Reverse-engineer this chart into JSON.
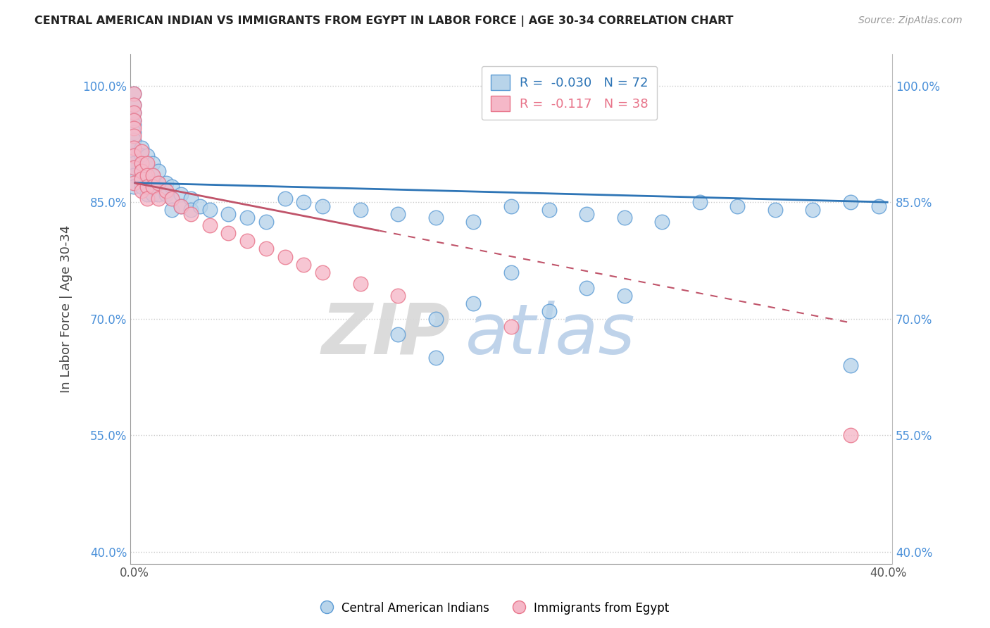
{
  "title": "CENTRAL AMERICAN INDIAN VS IMMIGRANTS FROM EGYPT IN LABOR FORCE | AGE 30-34 CORRELATION CHART",
  "source": "Source: ZipAtlas.com",
  "ylabel": "In Labor Force | Age 30-34",
  "xlabel": "",
  "xlim": [
    -0.002,
    0.402
  ],
  "ylim": [
    0.385,
    1.04
  ],
  "yticks": [
    0.4,
    0.55,
    0.7,
    0.85,
    1.0
  ],
  "ytick_labels": [
    "40.0%",
    "55.0%",
    "70.0%",
    "85.0%",
    "100.0%"
  ],
  "xticks": [
    0.0,
    0.4
  ],
  "xtick_labels": [
    "0.0%",
    "40.0%"
  ],
  "blue_R": -0.03,
  "blue_N": 72,
  "pink_R": -0.117,
  "pink_N": 38,
  "blue_color": "#b8d4ea",
  "pink_color": "#f5b8c8",
  "blue_edge_color": "#5b9bd5",
  "pink_edge_color": "#e8748a",
  "blue_line_color": "#2e75b6",
  "pink_line_color": "#c0546a",
  "legend_label_blue": "Central American Indians",
  "legend_label_pink": "Immigrants from Egypt",
  "blue_scatter_x": [
    0.0,
    0.0,
    0.0,
    0.0,
    0.0,
    0.0,
    0.0,
    0.0,
    0.0,
    0.0,
    0.0,
    0.0,
    0.0,
    0.004,
    0.004,
    0.004,
    0.004,
    0.004,
    0.004,
    0.007,
    0.007,
    0.007,
    0.007,
    0.007,
    0.01,
    0.01,
    0.01,
    0.01,
    0.013,
    0.013,
    0.013,
    0.017,
    0.017,
    0.02,
    0.02,
    0.02,
    0.025,
    0.025,
    0.03,
    0.03,
    0.035,
    0.04,
    0.05,
    0.06,
    0.07,
    0.08,
    0.09,
    0.1,
    0.12,
    0.14,
    0.16,
    0.18,
    0.2,
    0.22,
    0.24,
    0.26,
    0.28,
    0.3,
    0.32,
    0.34,
    0.36,
    0.38,
    0.395,
    0.2,
    0.24,
    0.26,
    0.18,
    0.22,
    0.16,
    0.14,
    0.16,
    0.38
  ],
  "blue_scatter_y": [
    0.99,
    0.975,
    0.965,
    0.955,
    0.95,
    0.94,
    0.93,
    0.92,
    0.91,
    0.9,
    0.895,
    0.885,
    0.87,
    0.92,
    0.91,
    0.9,
    0.89,
    0.88,
    0.87,
    0.91,
    0.895,
    0.88,
    0.87,
    0.86,
    0.9,
    0.885,
    0.875,
    0.86,
    0.89,
    0.875,
    0.86,
    0.875,
    0.86,
    0.87,
    0.855,
    0.84,
    0.86,
    0.845,
    0.855,
    0.84,
    0.845,
    0.84,
    0.835,
    0.83,
    0.825,
    0.855,
    0.85,
    0.845,
    0.84,
    0.835,
    0.83,
    0.825,
    0.845,
    0.84,
    0.835,
    0.83,
    0.825,
    0.85,
    0.845,
    0.84,
    0.84,
    0.85,
    0.845,
    0.76,
    0.74,
    0.73,
    0.72,
    0.71,
    0.7,
    0.68,
    0.65,
    0.64
  ],
  "pink_scatter_x": [
    0.0,
    0.0,
    0.0,
    0.0,
    0.0,
    0.0,
    0.0,
    0.0,
    0.0,
    0.0,
    0.004,
    0.004,
    0.004,
    0.004,
    0.004,
    0.007,
    0.007,
    0.007,
    0.007,
    0.01,
    0.01,
    0.013,
    0.013,
    0.017,
    0.02,
    0.025,
    0.03,
    0.04,
    0.05,
    0.06,
    0.07,
    0.08,
    0.09,
    0.1,
    0.12,
    0.14,
    0.2,
    0.38
  ],
  "pink_scatter_y": [
    0.99,
    0.975,
    0.965,
    0.955,
    0.945,
    0.935,
    0.92,
    0.91,
    0.895,
    0.875,
    0.915,
    0.9,
    0.89,
    0.88,
    0.865,
    0.9,
    0.885,
    0.87,
    0.855,
    0.885,
    0.87,
    0.875,
    0.855,
    0.865,
    0.855,
    0.845,
    0.835,
    0.82,
    0.81,
    0.8,
    0.79,
    0.78,
    0.77,
    0.76,
    0.745,
    0.73,
    0.69,
    0.55
  ]
}
